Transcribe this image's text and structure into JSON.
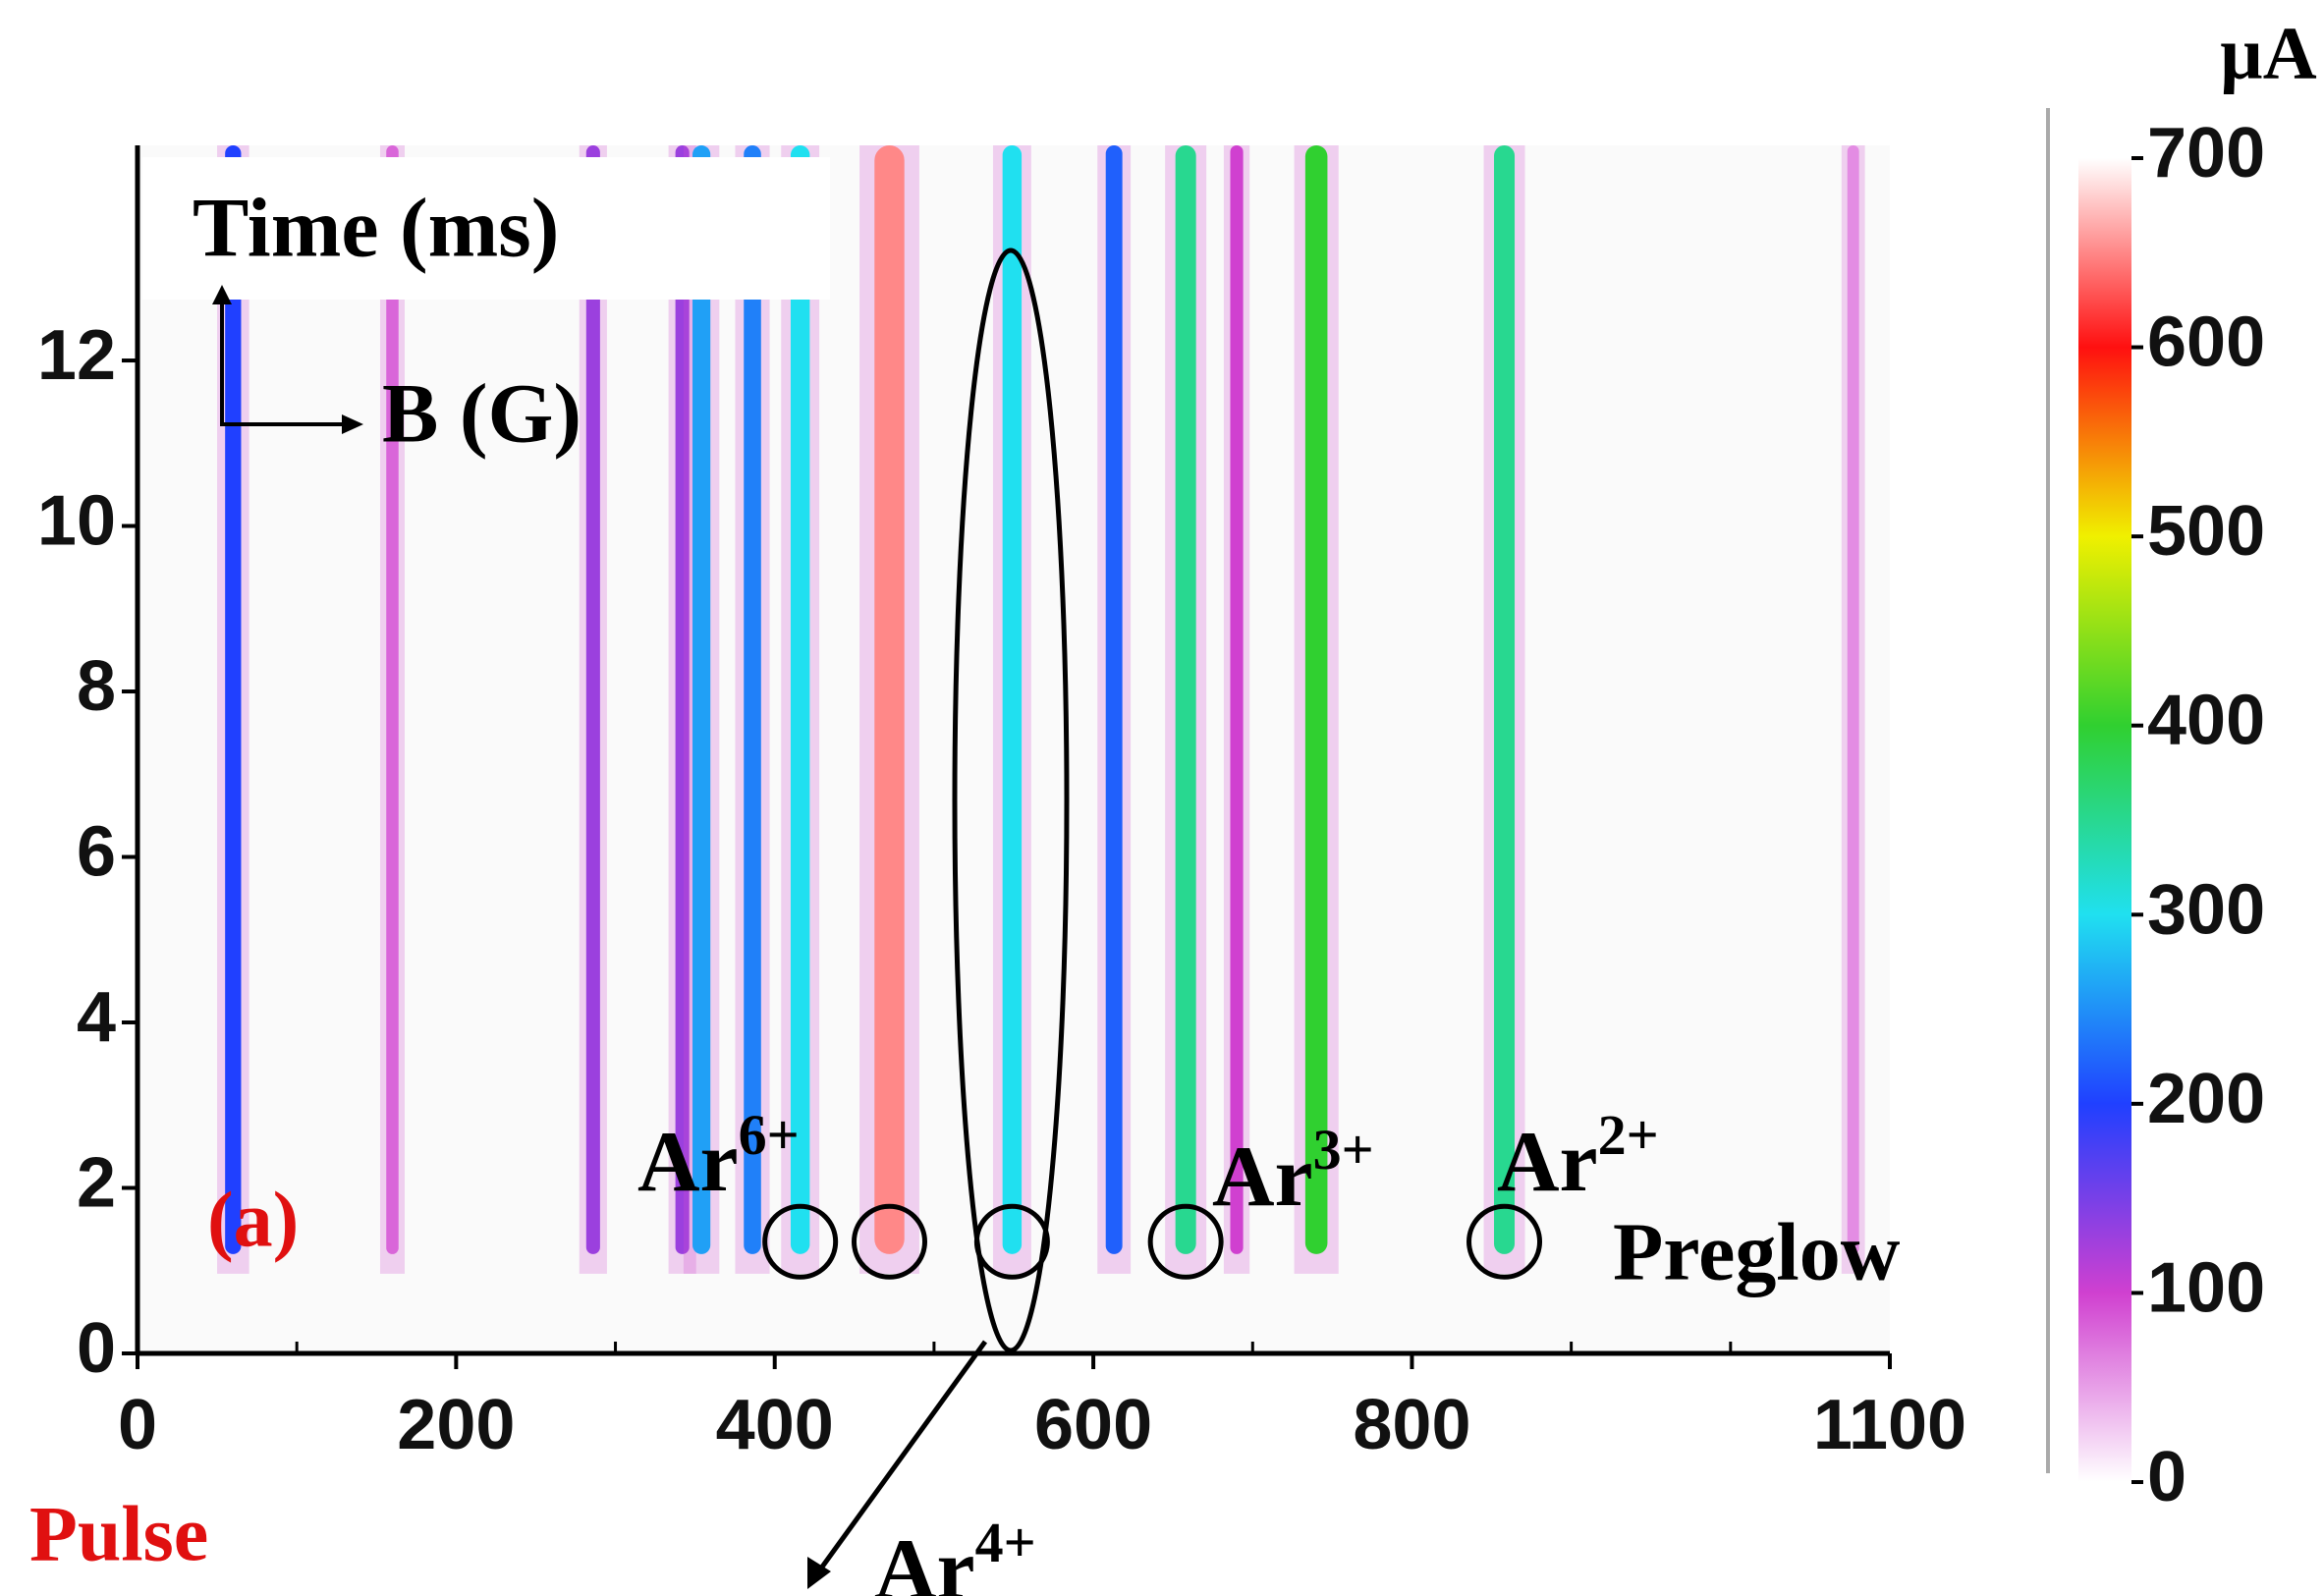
{
  "chart_data": {
    "type": "streak-map",
    "y_label": "Time (ms)",
    "x_label": "B (G)",
    "panel_label": "(a)",
    "mode_label": "Pulse",
    "colorbar_label": "µA",
    "annotation": "Preglow",
    "ion_labels": [
      {
        "ion": "Ar",
        "charge": "6+"
      },
      {
        "ion": "Ar",
        "charge": "3+"
      },
      {
        "ion": "Ar",
        "charge": "2+"
      },
      {
        "ion": "Ar",
        "charge": "4+"
      }
    ],
    "streaks": {
      "x": [
        60,
        160,
        286,
        342,
        354,
        386,
        416,
        472,
        549,
        613,
        658,
        690,
        740,
        858,
        1077
      ],
      "values": [
        200,
        80,
        130,
        130,
        260,
        240,
        300,
        650,
        300,
        220,
        350,
        100,
        400,
        350,
        60
      ]
    },
    "xlim": [
      0,
      1100
    ],
    "xticks": [
      0,
      200,
      400,
      600,
      800,
      1100
    ],
    "minor_xticks": [
      100,
      300,
      500,
      700,
      900,
      1000
    ],
    "ylim": [
      0,
      14.6
    ],
    "yticks": [
      0,
      2,
      4,
      6,
      8,
      10,
      12
    ],
    "zlim": [
      0,
      700
    ],
    "zticks": [
      0,
      100,
      200,
      300,
      400,
      500,
      600,
      700
    ],
    "colorscale": [
      "#ffffff",
      "#d040d0",
      "#2040ff",
      "#20e0f0",
      "#30d030",
      "#f0f000",
      "#ff1010",
      "#ffffff"
    ]
  }
}
